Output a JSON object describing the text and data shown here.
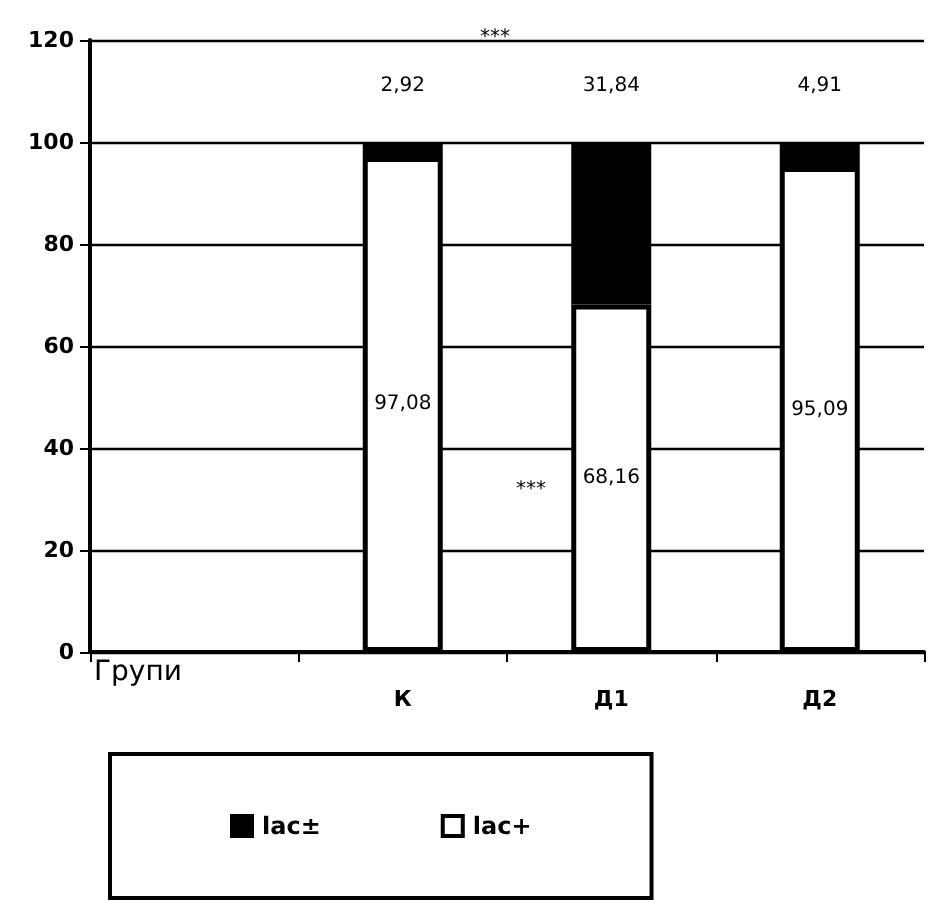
{
  "chart_data": {
    "type": "bar",
    "stacked": true,
    "xlabel": "Групи",
    "categories": [
      null,
      "К",
      "Д1",
      "Д2"
    ],
    "series": [
      {
        "name": "lac+",
        "color": "#ffffff",
        "values": [
          null,
          97.08,
          68.16,
          95.09
        ],
        "value_labels": [
          null,
          "97,08",
          "68,16",
          "95,09"
        ]
      },
      {
        "name": "lac±",
        "color": "#000000",
        "values": [
          null,
          2.92,
          31.84,
          4.91
        ],
        "value_labels": [
          null,
          "2,92",
          "31,84",
          "4,91"
        ]
      }
    ],
    "ylim": [
      0,
      120
    ],
    "yticks": [
      0,
      20,
      40,
      60,
      80,
      100,
      120
    ],
    "grid": "y",
    "legend": "bottom",
    "annotations": [
      "***",
      "***"
    ]
  }
}
